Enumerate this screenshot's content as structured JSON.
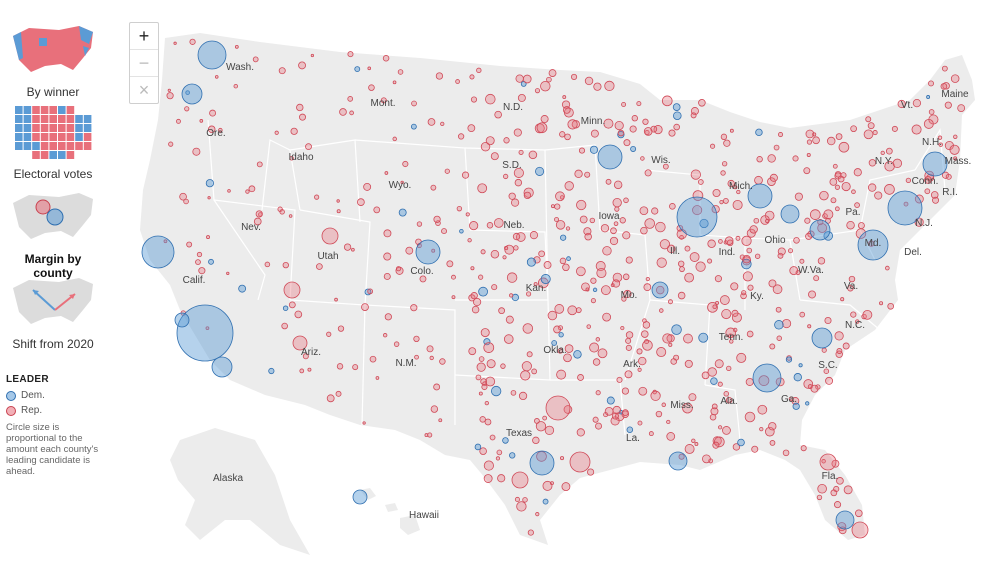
{
  "views": [
    {
      "id": "winner",
      "label": "By winner",
      "active": false
    },
    {
      "id": "electoral",
      "label": "Electoral votes",
      "active": false
    },
    {
      "id": "margin",
      "label": "Margin by county",
      "active": true
    },
    {
      "id": "shift",
      "label": "Shift from 2020",
      "active": false
    }
  ],
  "zoom": {
    "in": "+",
    "out": "−",
    "reset": "×"
  },
  "legend": {
    "title": "LEADER",
    "dem": "Dem.",
    "rep": "Rep.",
    "note": "Circle size is proportional to the amount each county's leading candidate is ahead."
  },
  "colors": {
    "dem": "#5b9bd5",
    "rep": "#e8707b",
    "land": "#ececec",
    "border": "#ffffff"
  },
  "state_labels": [
    "Wash.",
    "Ore.",
    "Idaho",
    "Mont.",
    "Wyo.",
    "Nev.",
    "Calif.",
    "Utah",
    "Colo.",
    "Ariz.",
    "N.M.",
    "N.D.",
    "S.D.",
    "Neb.",
    "Kan.",
    "Okla.",
    "Texas",
    "Minn.",
    "Iowa",
    "Mo.",
    "Ark.",
    "La.",
    "Wis.",
    "Ill.",
    "Mich.",
    "Ind.",
    "Ohio",
    "Ky.",
    "Tenn.",
    "Miss.",
    "Ala.",
    "Ga.",
    "Fla.",
    "S.C.",
    "N.C.",
    "Va.",
    "W.Va.",
    "Pa.",
    "N.Y.",
    "Vt.",
    "N.H.",
    "Maine",
    "Mass.",
    "Conn.",
    "R.I.",
    "N.J.",
    "Del.",
    "Md.",
    "Alaska",
    "Hawaii"
  ]
}
